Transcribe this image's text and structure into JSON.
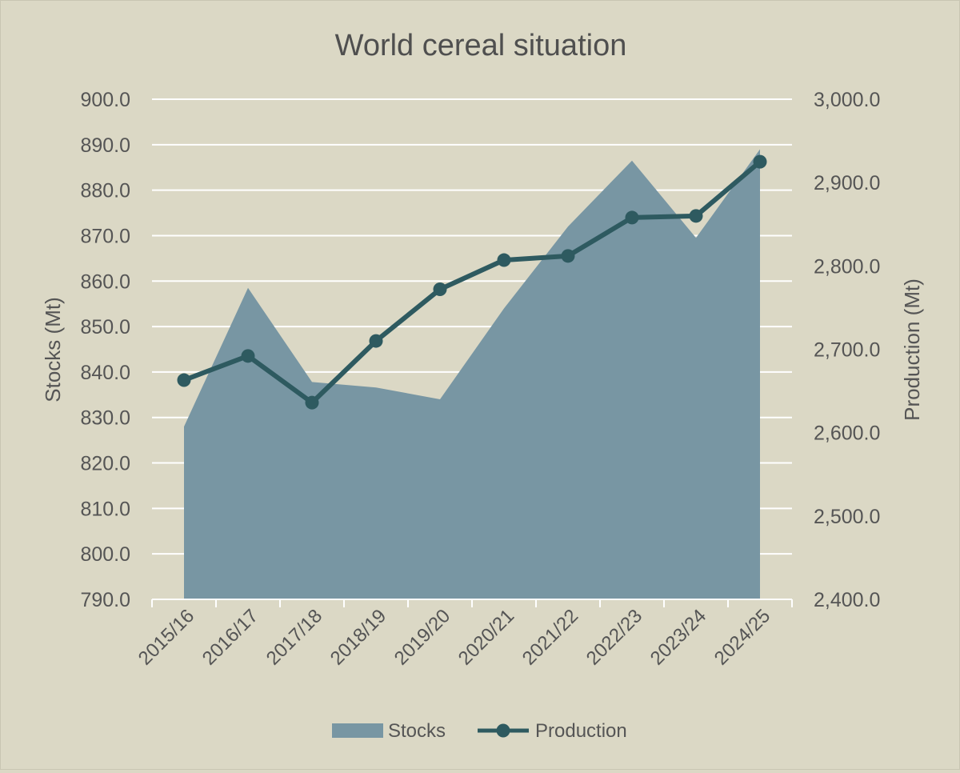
{
  "chart_data": {
    "type": "area+line",
    "title": "World cereal situation",
    "categories": [
      "2015/16",
      "2016/17",
      "2017/18",
      "2018/19",
      "2019/20",
      "2020/21",
      "2021/22",
      "2022/23",
      "2023/24",
      "2024/25"
    ],
    "y_left": {
      "label": "Stocks (Mt)",
      "range": [
        790,
        900
      ],
      "ticks": [
        "900.0",
        "890.0",
        "880.0",
        "870.0",
        "860.0",
        "850.0",
        "840.0",
        "830.0",
        "820.0",
        "810.0",
        "800.0",
        "790.0"
      ]
    },
    "y_right": {
      "label": "Production (Mt)",
      "range": [
        2400,
        3000
      ],
      "ticks": [
        "3,000.0",
        "2,900.0",
        "2,800.0",
        "2,700.0",
        "2,600.0",
        "2,500.0",
        "2,400.0"
      ]
    },
    "series": [
      {
        "name": "Stocks",
        "type": "area",
        "axis": "left",
        "color": "#7896a3",
        "values": [
          828.0,
          858.5,
          837.8,
          836.6,
          834.0,
          854.0,
          872.0,
          886.5,
          869.5,
          889.0
        ]
      },
      {
        "name": "Production",
        "type": "line",
        "axis": "right",
        "color": "#2e5a60",
        "values": [
          2663,
          2692,
          2636,
          2710,
          2772,
          2807,
          2812,
          2858,
          2860,
          2925
        ]
      }
    ],
    "grid": true,
    "legend_position": "bottom"
  }
}
